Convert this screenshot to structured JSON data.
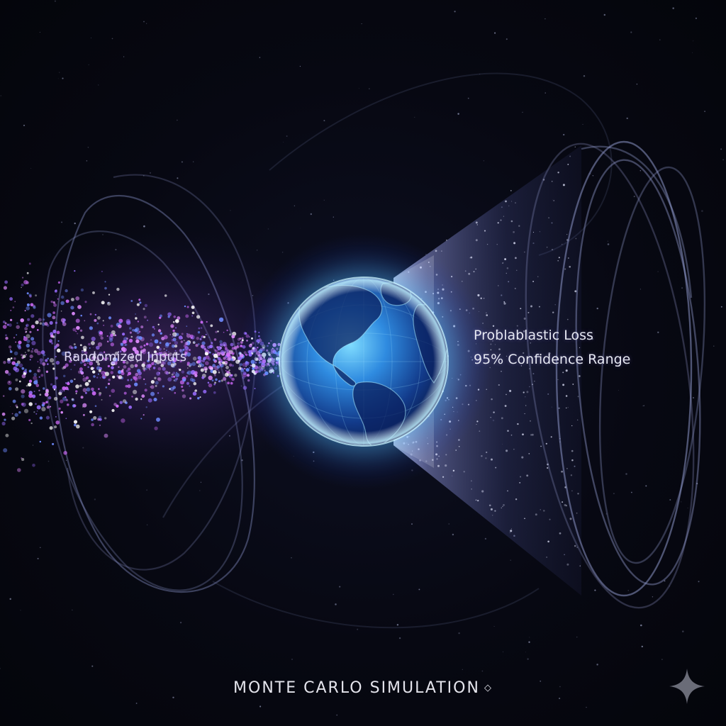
{
  "labels": {
    "inputs": "Randomized Inputs",
    "loss": "Problablastic Loss",
    "range": "95% Confidence Range"
  },
  "title": "MONTE CARLO SIMULATION",
  "icons": {
    "title_ornament": "diamond-icon",
    "corner_mark": "sparkle-icon"
  },
  "colors": {
    "background": "#06070f",
    "particle_magenta": "#d36cff",
    "particle_blue": "#6f8bff",
    "globe_glow": "#58c8ff",
    "orbit_lines": "#7c86b8",
    "cone": "#9aa4ff"
  }
}
